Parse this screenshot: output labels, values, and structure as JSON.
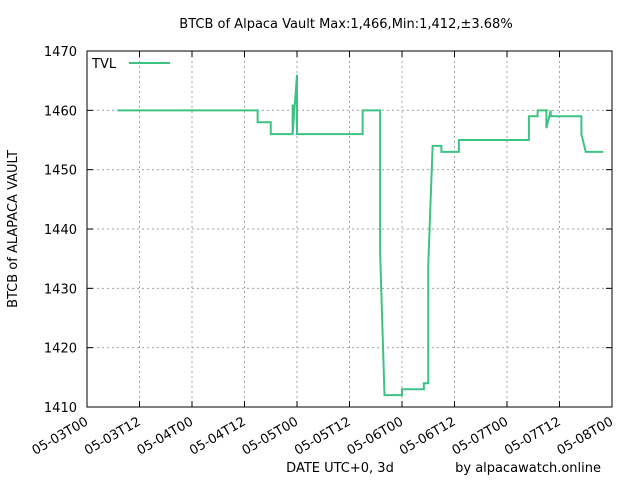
{
  "chart_data": {
    "type": "line",
    "title": "BTCB of Alpaca Vault Max:1,466,Min:1,412,±3.68%",
    "xlabel": "DATE UTC+0, 3d",
    "ylabel": "BTCB of ALAPACA VAULT",
    "credit": "by alpacawatch.online",
    "grid": true,
    "legend_position": "top-left",
    "xlim": [
      "05-03T00",
      "05-08T00"
    ],
    "ylim": [
      1410,
      1470
    ],
    "x_ticks": [
      "05-03T00",
      "05-03T12",
      "05-04T00",
      "05-04T12",
      "05-05T00",
      "05-05T12",
      "05-06T00",
      "05-06T12",
      "05-07T00",
      "05-07T12",
      "05-08T00"
    ],
    "y_ticks": [
      1410,
      1420,
      1430,
      1440,
      1450,
      1460,
      1470
    ],
    "series": [
      {
        "name": "TVL",
        "color": "#3cc383",
        "points": [
          [
            "05-03T07",
            1460
          ],
          [
            "05-04T07",
            1460
          ],
          [
            "05-04T15",
            1460
          ],
          [
            "05-04T15",
            1458
          ],
          [
            "05-04T18",
            1458
          ],
          [
            "05-04T18",
            1456
          ],
          [
            "05-04T23",
            1456
          ],
          [
            "05-04T23",
            1461
          ],
          [
            "05-04T23",
            1456
          ],
          [
            "05-05T00",
            1466
          ],
          [
            "05-05T00",
            1456
          ],
          [
            "05-05T15",
            1456
          ],
          [
            "05-05T15",
            1460
          ],
          [
            "05-05T19",
            1460
          ],
          [
            "05-05T19",
            1436
          ],
          [
            "05-05T20",
            1412
          ],
          [
            "05-06T00",
            1412
          ],
          [
            "05-06T00",
            1413
          ],
          [
            "05-06T05",
            1413
          ],
          [
            "05-06T05",
            1414
          ],
          [
            "05-06T06",
            1414
          ],
          [
            "05-06T06",
            1434
          ],
          [
            "05-06T07",
            1454
          ],
          [
            "05-06T09",
            1454
          ],
          [
            "05-06T09",
            1453
          ],
          [
            "05-06T13",
            1453
          ],
          [
            "05-06T13",
            1455
          ],
          [
            "05-07T05",
            1455
          ],
          [
            "05-07T05",
            1459
          ],
          [
            "05-07T07",
            1459
          ],
          [
            "05-07T07",
            1460
          ],
          [
            "05-07T09",
            1460
          ],
          [
            "05-07T09",
            1457
          ],
          [
            "05-07T10",
            1460
          ],
          [
            "05-07T10",
            1459
          ],
          [
            "05-07T17",
            1459
          ],
          [
            "05-07T17",
            1456
          ],
          [
            "05-07T18",
            1453
          ],
          [
            "05-07T22",
            1453
          ]
        ]
      }
    ]
  }
}
